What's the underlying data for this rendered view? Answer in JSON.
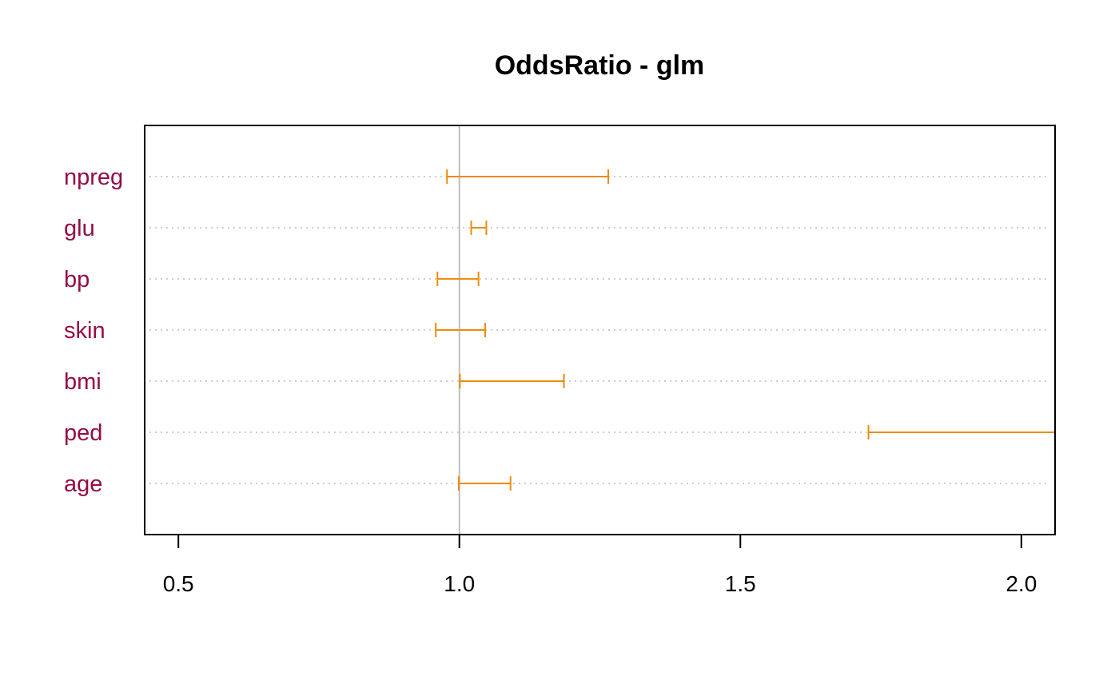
{
  "chart_data": {
    "type": "errorbar",
    "title": "OddsRatio - glm",
    "xlabel": "",
    "ylabel": "",
    "xlim": [
      0.44,
      2.06
    ],
    "xticks": [
      0.5,
      1.0,
      1.5,
      2.0
    ],
    "xtick_labels": [
      "0.5",
      "1.0",
      "1.5",
      "2.0"
    ],
    "reference_line": 1.0,
    "categories": [
      "npreg",
      "glu",
      "bp",
      "skin",
      "bmi",
      "ped",
      "age"
    ],
    "intervals": [
      {
        "name": "npreg",
        "lower": 0.978,
        "upper": 1.265
      },
      {
        "name": "glu",
        "lower": 1.021,
        "upper": 1.048
      },
      {
        "name": "bp",
        "lower": 0.961,
        "upper": 1.034
      },
      {
        "name": "skin",
        "lower": 0.958,
        "upper": 1.046
      },
      {
        "name": "bmi",
        "lower": 1.001,
        "upper": 1.186
      },
      {
        "name": "ped",
        "lower": 1.728,
        "upper": 2.06
      },
      {
        "name": "age",
        "lower": 0.999,
        "upper": 1.091
      }
    ],
    "grid": "horizontal dotted",
    "colors": {
      "interval": "#f08a0c",
      "label": "#960a46",
      "reference": "#bebebe",
      "grid": "#bebebe"
    }
  }
}
